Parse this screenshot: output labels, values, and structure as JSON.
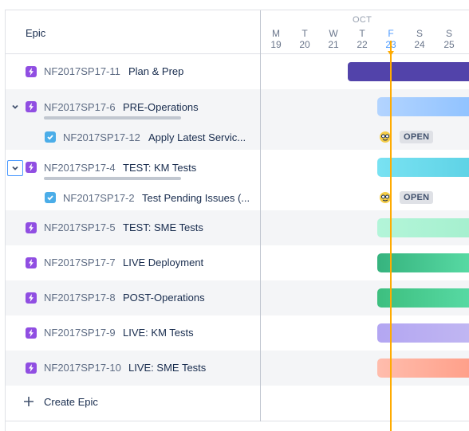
{
  "header": {
    "column_title": "Epic",
    "month": "OCT",
    "days": [
      {
        "letter": "M",
        "num": "19",
        "today": false
      },
      {
        "letter": "T",
        "num": "20",
        "today": false
      },
      {
        "letter": "W",
        "num": "21",
        "today": false
      },
      {
        "letter": "T",
        "num": "22",
        "today": false
      },
      {
        "letter": "F",
        "num": "23",
        "today": true
      },
      {
        "letter": "S",
        "num": "24",
        "today": false
      },
      {
        "letter": "S",
        "num": "25",
        "today": false
      }
    ]
  },
  "rows": [
    {
      "type": "epic",
      "key": "NF2017SP17-11",
      "summary": "Plan & Prep",
      "expanded": null
    },
    {
      "type": "epic",
      "key": "NF2017SP17-6",
      "summary": "PRE-Operations",
      "expanded": true
    },
    {
      "type": "task",
      "key": "NF2017SP17-12",
      "summary": "Apply Latest Servic...",
      "status": "OPEN"
    },
    {
      "type": "epic",
      "key": "NF2017SP17-4",
      "summary": "TEST: KM Tests",
      "expanded": true
    },
    {
      "type": "task",
      "key": "NF2017SP17-2",
      "summary": "Test Pending Issues (...",
      "status": "OPEN"
    },
    {
      "type": "epic",
      "key": "NF2017SP17-5",
      "summary": "TEST: SME Tests"
    },
    {
      "type": "epic",
      "key": "NF2017SP17-7",
      "summary": "LIVE Deployment"
    },
    {
      "type": "epic",
      "key": "NF2017SP17-8",
      "summary": "POST-Operations"
    },
    {
      "type": "epic",
      "key": "NF2017SP17-9",
      "summary": "LIVE: KM Tests"
    },
    {
      "type": "epic",
      "key": "NF2017SP17-10",
      "summary": "LIVE: SME Tests"
    }
  ],
  "bars": {
    "plan_prep": "#5243aa",
    "pre_operations": "#91c3ff",
    "test_km": "#6cd8ea",
    "test_sme": "#a6f0cf",
    "live_deployment": "#36b37e",
    "post_operations": "#4ccb8a",
    "live_km": "#a99af0",
    "live_sme": "#ffac98"
  },
  "footer": {
    "create_label": "Create Epic"
  },
  "icons": {
    "epic": "lightning-icon",
    "task": "checkbox-icon",
    "expand": "chevron-down-icon",
    "create": "plus-icon",
    "assignee": "avatar-icon"
  }
}
